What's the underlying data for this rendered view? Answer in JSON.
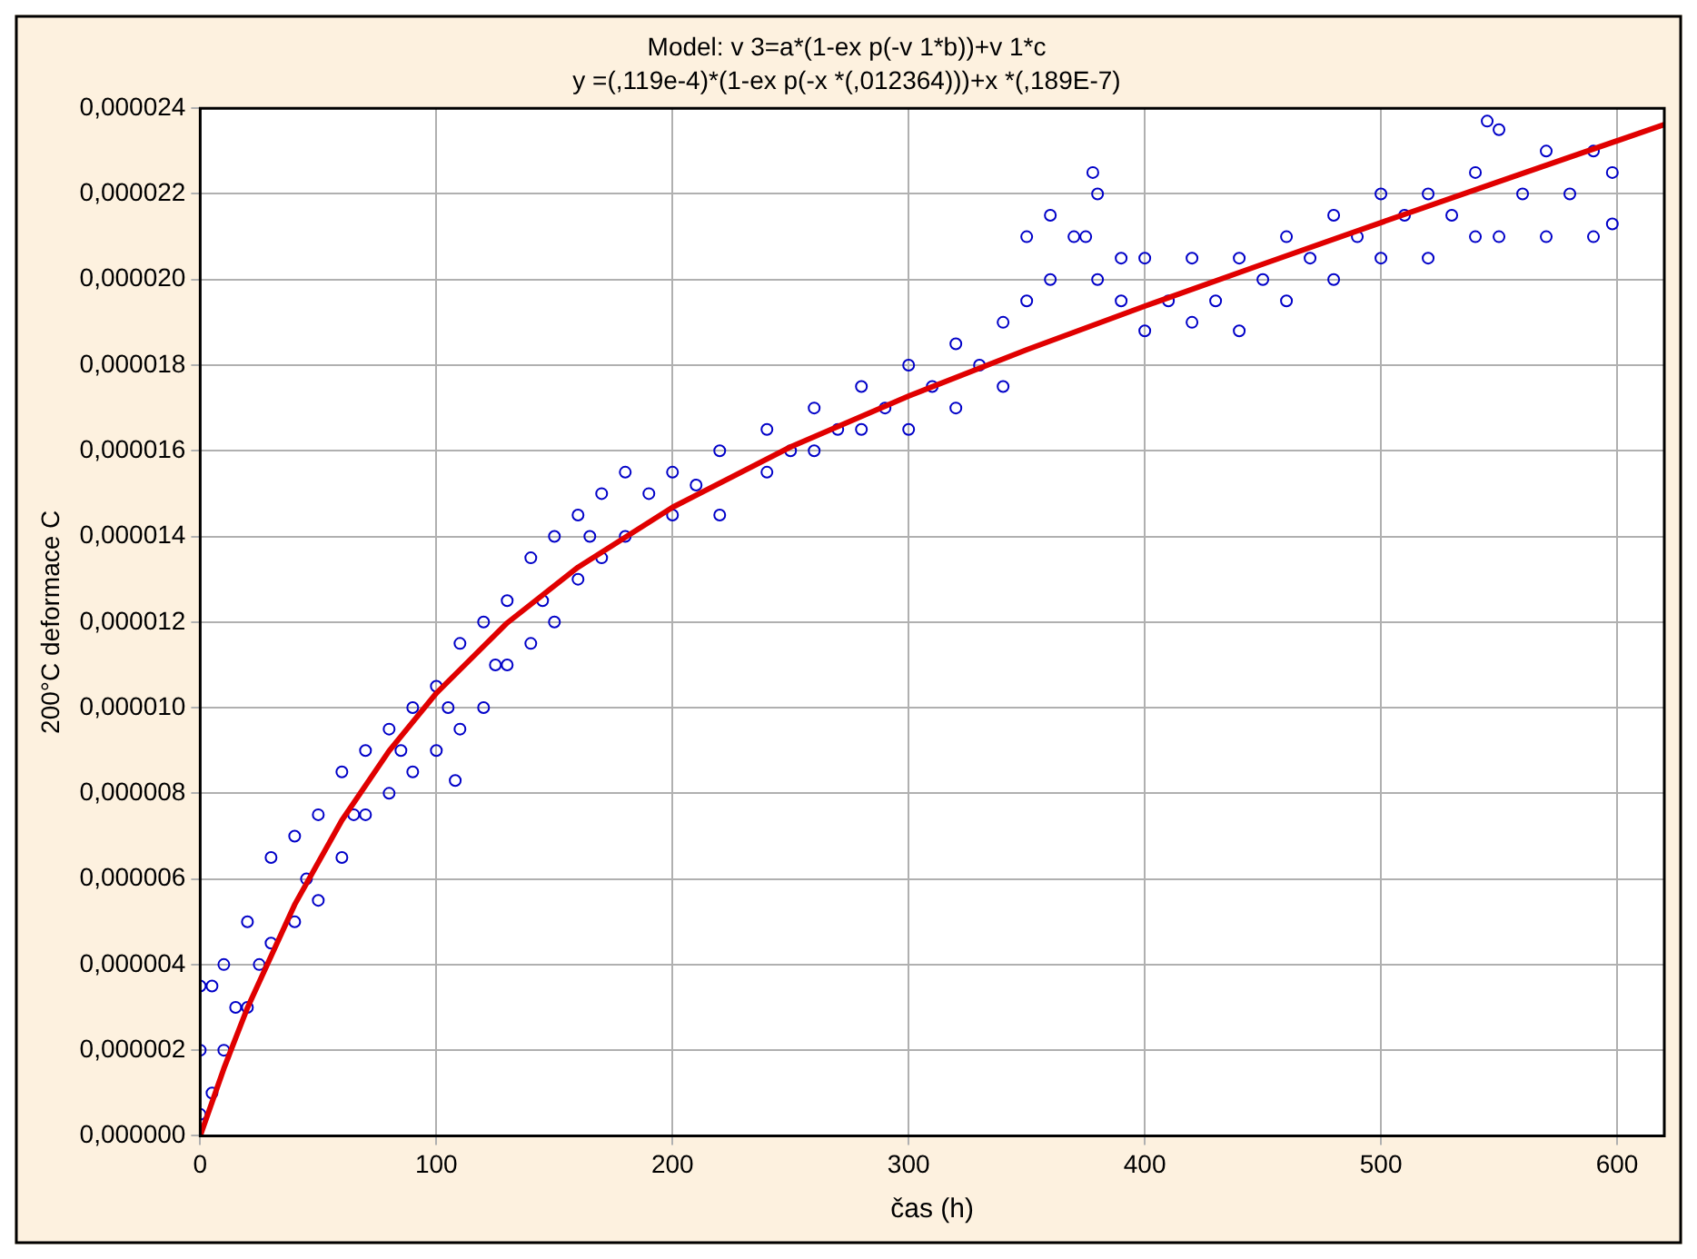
{
  "chart_data": {
    "type": "scatter",
    "title": "Model: v 3=a*(1-ex p(-v 1*b))+v 1*c",
    "subtitle": "y =(,119e-4)*(1-ex p(-x *(,012364)))+x *(,189E-7)",
    "xlabel": "čas (h)",
    "ylabel": "200°C deformace C",
    "xlim": [
      0,
      620
    ],
    "xticks": [
      0,
      100,
      200,
      300,
      400,
      500,
      600
    ],
    "ylim": [
      0,
      2.4e-05
    ],
    "yticks": [
      {
        "value": 0,
        "label": "0,000000"
      },
      {
        "value": 2e-06,
        "label": "0,000002"
      },
      {
        "value": 4e-06,
        "label": "0,000004"
      },
      {
        "value": 6e-06,
        "label": "0,000006"
      },
      {
        "value": 8e-06,
        "label": "0,000008"
      },
      {
        "value": 1e-05,
        "label": "0,000010"
      },
      {
        "value": 1.2e-05,
        "label": "0,000012"
      },
      {
        "value": 1.4e-05,
        "label": "0,000014"
      },
      {
        "value": 1.6e-05,
        "label": "0,000016"
      },
      {
        "value": 1.8e-05,
        "label": "0,000018"
      },
      {
        "value": 2e-05,
        "label": "0,000020"
      },
      {
        "value": 2.2e-05,
        "label": "0,000022"
      },
      {
        "value": 2.4e-05,
        "label": "0,000024"
      }
    ],
    "grid": true,
    "legend": false,
    "marker": "circle",
    "series": [
      {
        "color": "#0000c8",
        "x": [
          0,
          0,
          0,
          5,
          5,
          10,
          10,
          15,
          20,
          20,
          25,
          30,
          30,
          40,
          40,
          45,
          50,
          50,
          60,
          60,
          65,
          70,
          70,
          80,
          80,
          85,
          90,
          90,
          100,
          100,
          105,
          108,
          110,
          110,
          120,
          120,
          125,
          130,
          130,
          140,
          140,
          145,
          150,
          150,
          160,
          160,
          165,
          170,
          170,
          180,
          180,
          190,
          200,
          200,
          210,
          220,
          220,
          240,
          240,
          250,
          260,
          260,
          270,
          280,
          280,
          290,
          300,
          300,
          310,
          320,
          320,
          330,
          340,
          340,
          350,
          350,
          360,
          360,
          370,
          375,
          378,
          380,
          380,
          390,
          390,
          400,
          400,
          410,
          420,
          420,
          430,
          440,
          440,
          450,
          460,
          460,
          470,
          480,
          480,
          490,
          500,
          500,
          510,
          520,
          520,
          530,
          540,
          540,
          545,
          550,
          550,
          560,
          570,
          570,
          580,
          590,
          590,
          598,
          598
        ],
        "values": [
          5e-07,
          2e-06,
          3.5e-06,
          1e-06,
          3.5e-06,
          2e-06,
          4e-06,
          3e-06,
          3e-06,
          5e-06,
          4e-06,
          4.5e-06,
          6.5e-06,
          5e-06,
          7e-06,
          6e-06,
          5.5e-06,
          7.5e-06,
          6.5e-06,
          8.5e-06,
          7.5e-06,
          7.5e-06,
          9e-06,
          8e-06,
          9.5e-06,
          9e-06,
          8.5e-06,
          1e-05,
          9e-06,
          1.05e-05,
          1e-05,
          8.3e-06,
          9.5e-06,
          1.15e-05,
          1e-05,
          1.2e-05,
          1.1e-05,
          1.1e-05,
          1.25e-05,
          1.15e-05,
          1.35e-05,
          1.25e-05,
          1.2e-05,
          1.4e-05,
          1.3e-05,
          1.45e-05,
          1.4e-05,
          1.35e-05,
          1.5e-05,
          1.4e-05,
          1.55e-05,
          1.5e-05,
          1.45e-05,
          1.55e-05,
          1.52e-05,
          1.45e-05,
          1.6e-05,
          1.55e-05,
          1.65e-05,
          1.6e-05,
          1.6e-05,
          1.7e-05,
          1.65e-05,
          1.65e-05,
          1.75e-05,
          1.7e-05,
          1.65e-05,
          1.8e-05,
          1.75e-05,
          1.7e-05,
          1.85e-05,
          1.8e-05,
          1.75e-05,
          1.9e-05,
          1.95e-05,
          2.1e-05,
          2e-05,
          2.15e-05,
          2.1e-05,
          2.1e-05,
          2.25e-05,
          2e-05,
          2.2e-05,
          1.95e-05,
          2.05e-05,
          1.88e-05,
          2.05e-05,
          1.95e-05,
          1.9e-05,
          2.05e-05,
          1.95e-05,
          1.88e-05,
          2.05e-05,
          2e-05,
          1.95e-05,
          2.1e-05,
          2.05e-05,
          2e-05,
          2.15e-05,
          2.1e-05,
          2.05e-05,
          2.2e-05,
          2.15e-05,
          2.05e-05,
          2.2e-05,
          2.15e-05,
          2.1e-05,
          2.25e-05,
          2.37e-05,
          2.1e-05,
          2.35e-05,
          2.2e-05,
          2.1e-05,
          2.3e-05,
          2.2e-05,
          2.1e-05,
          2.3e-05,
          2.13e-05,
          2.25e-05
        ]
      },
      {
        "type": "line",
        "color": "#e00000",
        "marker": "none",
        "x": [
          0,
          10,
          20,
          40,
          60,
          80,
          100,
          130,
          160,
          200,
          250,
          300,
          350,
          400,
          450,
          500,
          550,
          620
        ],
        "values": [
          0,
          1.57e-06,
          2.99e-06,
          5.4e-06,
          7.37e-06,
          8.99e-06,
          1.034e-05,
          1.198e-05,
          1.328e-05,
          1.468e-05,
          1.609e-05,
          1.728e-05,
          1.836e-05,
          1.938e-05,
          2.036e-05,
          2.133e-05,
          2.229e-05,
          2.362e-05
        ]
      }
    ]
  }
}
